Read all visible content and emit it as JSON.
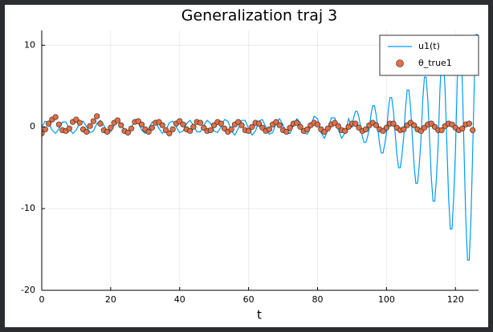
{
  "chart_data": {
    "type": "line",
    "title": "Generalization traj 3",
    "x_label": "t",
    "xlim": [
      0,
      126.7
    ],
    "ylim": [
      -20,
      11.8
    ],
    "xticks": [
      0,
      20,
      40,
      60,
      80,
      100,
      120
    ],
    "yticks": [
      -20,
      -10,
      0,
      10
    ],
    "grid": true,
    "legend": "top-right",
    "series": [
      {
        "name": "u1(t)",
        "type": "line",
        "color": "#009af9",
        "x": [
          0,
          1,
          2,
          3,
          4,
          5,
          6,
          7,
          8,
          9,
          10,
          11,
          12,
          13,
          14,
          15,
          16,
          17,
          18,
          19,
          20,
          21,
          22,
          23,
          24,
          25,
          26,
          27,
          28,
          29,
          30,
          31,
          32,
          33,
          34,
          35,
          36,
          37,
          38,
          39,
          40,
          41,
          42,
          43,
          44,
          45,
          46,
          47,
          48,
          49,
          50,
          51,
          52,
          53,
          54,
          55,
          56,
          57,
          58,
          59,
          60,
          61,
          62,
          63,
          64,
          65,
          66,
          67,
          68,
          69,
          70,
          71,
          72,
          73,
          74,
          75,
          76,
          77,
          78,
          79,
          80,
          81,
          82,
          83,
          84,
          85,
          86,
          87,
          88,
          89,
          90,
          90.5,
          91,
          91.5,
          92,
          92.5,
          93,
          93.5,
          94,
          94.5,
          95,
          95.5,
          96,
          96.5,
          97,
          97.5,
          98,
          98.5,
          99,
          99.5,
          100,
          100.5,
          101,
          101.5,
          102,
          102.5,
          103,
          103.5,
          104,
          104.5,
          105,
          105.5,
          106,
          106.5,
          107,
          107.5,
          108,
          108.5,
          109,
          109.5,
          110,
          110.5,
          111,
          111.5,
          112,
          112.5,
          113,
          113.5,
          114,
          114.5,
          115,
          115.5,
          116,
          116.5,
          117,
          117.5,
          118,
          118.5,
          119,
          119.5,
          120,
          120.5,
          121,
          121.5,
          122,
          122.5,
          123,
          123.5,
          124,
          124.5,
          125,
          125.5,
          126,
          126.5
        ],
        "values": [
          0,
          0.7,
          0.5,
          -0.4,
          -0.8,
          -0.2,
          0.6,
          0.6,
          -0.2,
          -0.8,
          -0.4,
          0.5,
          0.7,
          0,
          -0.7,
          -0.5,
          0.4,
          0.8,
          0.2,
          -0.6,
          -0.6,
          0.2,
          0.8,
          0.4,
          -0.5,
          -0.7,
          0,
          0.7,
          0.5,
          -0.4,
          -0.8,
          -0.2,
          0.6,
          0.6,
          -0.2,
          -0.8,
          -0.4,
          0.5,
          0.7,
          0,
          -0.7,
          -0.5,
          0.4,
          0.8,
          0.2,
          -0.6,
          -0.6,
          0.2,
          0.8,
          0.4,
          -0.5,
          -0.7,
          0,
          0.9,
          0.7,
          -0.5,
          -1,
          -0.2,
          0.8,
          0.8,
          -0.2,
          -1,
          -0.5,
          0.7,
          0.9,
          0,
          -0.9,
          -0.7,
          0.5,
          1,
          0.2,
          -0.8,
          -0.8,
          0.2,
          1,
          0.5,
          -0.7,
          -0.9,
          0,
          1.3,
          1,
          -0.7,
          -1.4,
          -0.3,
          1.1,
          1.1,
          -0.3,
          -1.4,
          -0.7,
          1,
          0,
          1.2,
          1.9,
          1.9,
          1.2,
          0,
          -1.2,
          -1.9,
          -1.9,
          -1.2,
          -0.3,
          1.5,
          2.6,
          2.6,
          1.5,
          -0.3,
          -2.1,
          -3.2,
          -3.2,
          -2.1,
          -0.7,
          2,
          3.6,
          3.6,
          2,
          -0.7,
          -3.4,
          -5,
          -5,
          -3.4,
          -1.2,
          2.3,
          4.5,
          4.5,
          2.3,
          -1.2,
          -4.7,
          -6.9,
          -6.9,
          -4.7,
          -1.5,
          3.2,
          6.1,
          6.1,
          3.2,
          -1.5,
          -6.2,
          -9.1,
          -9.1,
          -6.2,
          -2,
          4.5,
          8.5,
          8.5,
          4.5,
          -2,
          -8.5,
          -12.5,
          -12.5,
          -8.5,
          -3,
          5.3,
          10.3,
          10.3,
          5.3,
          -3,
          -11.3,
          -16.3,
          -16.3,
          -11.3,
          -3,
          5.9,
          11.3,
          11.3
        ]
      },
      {
        "name": "θ_true1",
        "type": "scatter",
        "color": "#e26f46",
        "x": [
          0,
          1,
          2,
          3,
          4,
          5,
          6,
          7,
          8,
          9,
          10,
          11,
          12,
          13,
          14,
          15,
          16,
          17,
          18,
          19,
          20,
          21,
          22,
          23,
          24,
          25,
          26,
          27,
          28,
          29,
          30,
          31,
          32,
          33,
          34,
          35,
          36,
          37,
          38,
          39,
          40,
          41,
          42,
          43,
          44,
          45,
          46,
          47,
          48,
          49,
          50,
          51,
          52,
          53,
          54,
          55,
          56,
          57,
          58,
          59,
          60,
          61,
          62,
          63,
          64,
          65,
          66,
          67,
          68,
          69,
          70,
          71,
          72,
          73,
          74,
          75,
          76,
          77,
          78,
          79,
          80,
          81,
          82,
          83,
          84,
          85,
          86,
          87,
          88,
          89,
          90,
          91,
          92,
          93,
          94,
          95,
          96,
          97,
          98,
          99,
          100,
          101,
          102,
          103,
          104,
          105,
          106,
          107,
          108,
          109,
          110,
          111,
          112,
          113,
          114,
          115,
          116,
          117,
          118,
          119,
          120,
          121,
          122,
          123,
          124,
          125
        ],
        "values": [
          -0.8,
          -0.3,
          0.4,
          0.9,
          1.2,
          0.3,
          -0.4,
          -0.5,
          -0.2,
          0.6,
          0.9,
          0.5,
          -0.3,
          -0.6,
          0.1,
          0.7,
          1.3,
          0.4,
          -0.4,
          -0.6,
          -0.1,
          0.5,
          0.8,
          0.2,
          -0.5,
          -0.7,
          -0.2,
          0.6,
          0.7,
          0.3,
          -0.3,
          -0.6,
          -0.1,
          0.5,
          0.6,
          0.2,
          -0.4,
          -0.8,
          -0.3,
          0.4,
          0.7,
          0.3,
          -0.3,
          -0.5,
          0,
          0.6,
          0.5,
          -0.1,
          -0.5,
          -0.4,
          0.2,
          0.6,
          0.4,
          -0.2,
          -0.6,
          -0.3,
          0.3,
          0.6,
          0.2,
          -0.4,
          -0.5,
          0,
          0.5,
          0.4,
          -0.1,
          -0.5,
          -0.3,
          0.3,
          0.6,
          0.2,
          -0.4,
          -0.6,
          -0.1,
          0.4,
          0.5,
          0,
          -0.5,
          -0.3,
          0.2,
          0.5,
          0.3,
          -0.3,
          -0.6,
          -0.2,
          0.3,
          0.5,
          0.1,
          -0.4,
          -0.5,
          0,
          0.4,
          0.4,
          -0.1,
          -0.5,
          -0.3,
          0.2,
          0.5,
          0.2,
          -0.3,
          -0.5,
          -0.1,
          0.4,
          0.4,
          -0.1,
          -0.4,
          -0.3,
          0.2,
          0.5,
          0.2,
          -0.3,
          -0.5,
          -0.1,
          0.3,
          0.4,
          0,
          -0.4,
          -0.4,
          0.1,
          0.4,
          0.3,
          -0.1,
          -0.4,
          -0.2,
          0.3,
          0.4,
          -0.4
        ]
      }
    ]
  }
}
